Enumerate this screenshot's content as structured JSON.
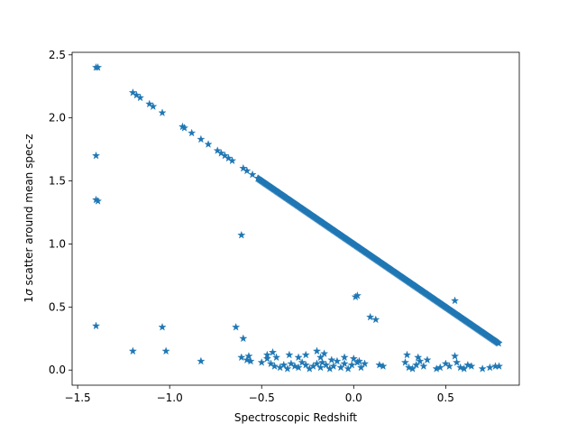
{
  "chart_data": {
    "type": "scatter",
    "xlabel": "Spectroscopic Redshift",
    "ylabel_prefix": "1",
    "ylabel_sigma": "σ",
    "ylabel_suffix": " scatter around mean spec-z",
    "xlim": [
      -1.53,
      0.9
    ],
    "ylim": [
      -0.12,
      2.52
    ],
    "xticks": [
      -1.5,
      -1.0,
      -0.5,
      0.0,
      0.5
    ],
    "xtick_labels": [
      "−1.5",
      "−1.0",
      "−0.5",
      "0.0",
      "0.5"
    ],
    "yticks": [
      0.0,
      0.5,
      1.0,
      1.5,
      2.0,
      2.5
    ],
    "ytick_labels": [
      "0.0",
      "0.5",
      "1.0",
      "1.5",
      "2.0",
      "2.5"
    ],
    "marker": "star",
    "color": "#1f77b4",
    "series": [
      {
        "x": [
          -1.4,
          -1.39,
          -1.4,
          -1.4,
          -1.39,
          -1.4,
          -1.2,
          -1.04,
          -1.02,
          -0.83,
          -0.64,
          -0.61,
          -0.58,
          -0.6,
          -0.56,
          -0.5,
          -0.47,
          -0.45,
          -0.43,
          -0.4,
          -0.38,
          -0.36,
          -0.34,
          -0.32,
          -0.3,
          -0.28,
          -0.26,
          -0.24,
          -0.22,
          -0.2,
          -0.18,
          -0.17,
          -0.15,
          -0.13,
          -0.11,
          -0.09,
          -0.07,
          -0.05,
          -0.03,
          -0.01,
          0.02,
          0.04,
          0.06,
          0.14,
          0.16,
          0.28,
          0.3,
          0.32,
          0.34,
          0.36,
          0.38,
          0.45,
          0.47,
          0.5,
          0.52,
          0.56,
          0.58,
          0.6,
          0.62,
          0.64,
          0.7,
          0.74,
          0.77,
          0.79,
          -0.26,
          -0.2,
          -0.18,
          -0.16,
          -0.44,
          -0.42,
          -0.35,
          -0.12,
          -0.05,
          0.0,
          0.03,
          0.29,
          0.35,
          0.4,
          0.55,
          -0.47,
          -0.3,
          0.02,
          0.01,
          0.09,
          0.12,
          0.55,
          -0.61,
          -0.57
        ],
        "y": [
          2.4,
          2.4,
          1.7,
          1.35,
          1.34,
          0.35,
          0.15,
          0.34,
          0.15,
          0.07,
          0.34,
          0.1,
          0.08,
          0.25,
          0.07,
          0.06,
          0.09,
          0.05,
          0.03,
          0.02,
          0.04,
          0.01,
          0.05,
          0.03,
          0.02,
          0.06,
          0.04,
          0.01,
          0.03,
          0.05,
          0.02,
          0.06,
          0.04,
          0.01,
          0.03,
          0.07,
          0.02,
          0.05,
          0.01,
          0.04,
          0.06,
          0.02,
          0.05,
          0.04,
          0.03,
          0.06,
          0.02,
          0.01,
          0.04,
          0.07,
          0.03,
          0.01,
          0.02,
          0.05,
          0.03,
          0.06,
          0.02,
          0.01,
          0.04,
          0.03,
          0.01,
          0.02,
          0.03,
          0.03,
          0.12,
          0.15,
          0.1,
          0.13,
          0.14,
          0.1,
          0.12,
          0.08,
          0.1,
          0.09,
          0.07,
          0.12,
          0.1,
          0.08,
          0.11,
          0.12,
          0.1,
          0.59,
          0.58,
          0.42,
          0.4,
          0.55,
          1.07,
          0.11
        ]
      },
      {
        "line_y_intercept": 1.0,
        "line_slope": -1.0,
        "line_x_range": [
          -1.2,
          0.79
        ],
        "line_x_samples": [
          -1.2,
          -1.18,
          -1.16,
          -1.11,
          -1.09,
          -1.04,
          -0.93,
          -0.92,
          -0.88,
          -0.83,
          -0.79,
          -0.74,
          -0.72,
          -0.7,
          -0.68,
          -0.66,
          -0.6,
          -0.58,
          -0.55,
          -0.52
        ],
        "line_dense_start": -0.52,
        "line_dense_end": 0.79,
        "line_dense_step": 0.004
      }
    ]
  }
}
